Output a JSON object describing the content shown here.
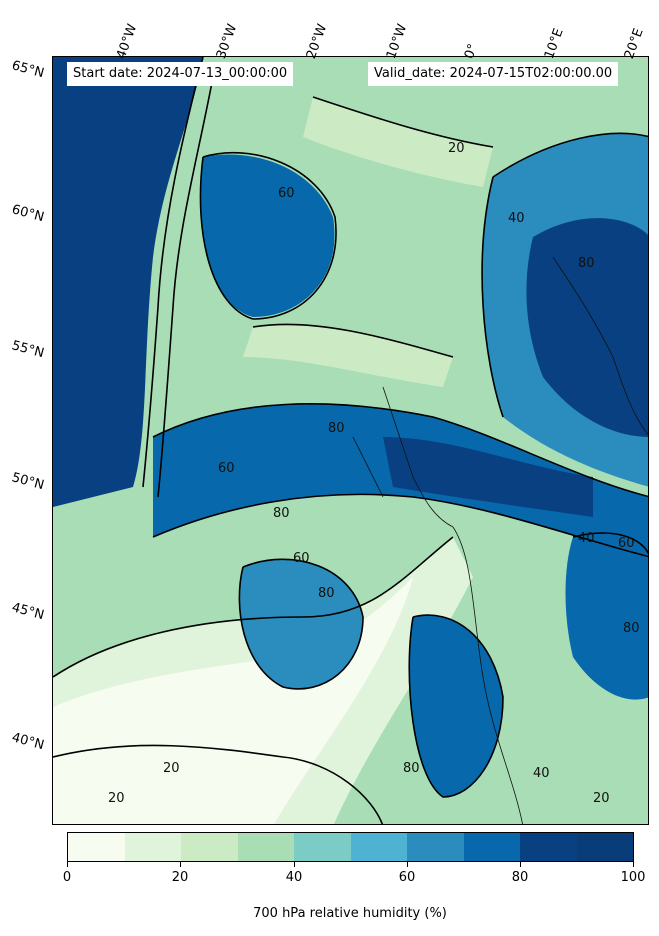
{
  "header": {
    "start_date": "Start date: 2024-07-13_00:00:00",
    "valid_date": "Valid_date: 2024-07-15T02:00:00.00"
  },
  "lat_labels": [
    "65°N",
    "60°N",
    "55°N",
    "50°N",
    "45°N",
    "40°N"
  ],
  "lon_labels": [
    "40°W",
    "30°W",
    "20°W",
    "10°W",
    "0°",
    "10°E",
    "20°E"
  ],
  "contour_labels": [
    "20",
    "40",
    "60",
    "80"
  ],
  "colorbar": {
    "title": "700 hPa relative humidity (%)",
    "ticks": [
      "0",
      "20",
      "40",
      "60",
      "80",
      "100"
    ],
    "levels": [
      0,
      10,
      20,
      30,
      40,
      50,
      60,
      70,
      80,
      90,
      100
    ],
    "colors": [
      "#f7fcf0",
      "#e0f3db",
      "#ccebc5",
      "#a8ddb5",
      "#7bccc4",
      "#4eb3d3",
      "#2b8cbe",
      "#0868ac",
      "#084081",
      "#083d7a"
    ]
  }
}
